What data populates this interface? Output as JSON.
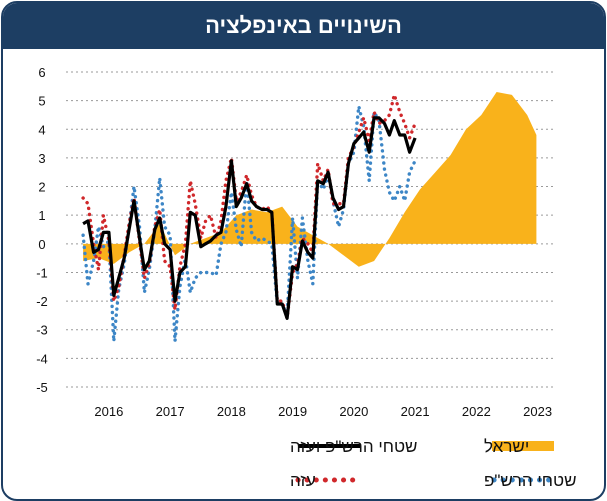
{
  "title": "השינויים באינפלציה",
  "colors": {
    "frame": "#1d3e63",
    "israel": "#f9b21b",
    "territories_gaza": "#000000",
    "gaza": "#d0282b",
    "territories": "#3d86c6"
  },
  "chart_data": {
    "type": "line",
    "title": "השינויים באינפלציה",
    "ylim": [
      -5,
      6
    ],
    "yticks": [
      "6",
      "5",
      "4",
      "3",
      "2",
      "1",
      "0",
      "-1",
      "-2",
      "-3",
      "-4",
      "-5"
    ],
    "xticks": [
      "2016",
      "2017",
      "2018",
      "2019",
      "2020",
      "2021",
      "2022",
      "2023"
    ],
    "grid": "horizontal-dotted",
    "legend_position": "bottom",
    "series": [
      {
        "name": "ישראל",
        "style": "area",
        "color": "#f9b21b",
        "points": [
          [
            2016.0,
            -0.6
          ],
          [
            2016.25,
            -0.5
          ],
          [
            2016.5,
            -0.7
          ],
          [
            2016.75,
            -0.3
          ],
          [
            2017.0,
            0.0
          ],
          [
            2017.25,
            0.7
          ],
          [
            2017.5,
            -0.4
          ],
          [
            2017.75,
            0.0
          ],
          [
            2018.0,
            0.2
          ],
          [
            2018.25,
            0.4
          ],
          [
            2018.5,
            1.0
          ],
          [
            2018.75,
            1.2
          ],
          [
            2019.0,
            1.1
          ],
          [
            2019.25,
            1.3
          ],
          [
            2019.5,
            0.6
          ],
          [
            2019.75,
            0.3
          ],
          [
            2020.0,
            0.0
          ],
          [
            2020.25,
            -0.4
          ],
          [
            2020.5,
            -0.8
          ],
          [
            2020.75,
            -0.6
          ],
          [
            2021.0,
            0.2
          ],
          [
            2021.25,
            1.1
          ],
          [
            2021.5,
            1.9
          ],
          [
            2021.75,
            2.5
          ],
          [
            2022.0,
            3.1
          ],
          [
            2022.25,
            4.0
          ],
          [
            2022.5,
            4.5
          ],
          [
            2022.75,
            5.3
          ],
          [
            2023.0,
            5.2
          ],
          [
            2023.25,
            4.5
          ],
          [
            2023.4,
            3.8
          ]
        ]
      },
      {
        "name": "שטחי הרש\"פ ועזה",
        "style": "solid",
        "color": "#000000",
        "points": [
          [
            2016.0,
            0.7
          ],
          [
            2016.08,
            0.8
          ],
          [
            2016.17,
            -0.3
          ],
          [
            2016.25,
            -0.2
          ],
          [
            2016.33,
            0.4
          ],
          [
            2016.42,
            0.4
          ],
          [
            2016.5,
            -1.8
          ],
          [
            2016.58,
            -1.2
          ],
          [
            2016.67,
            -0.5
          ],
          [
            2016.75,
            0.5
          ],
          [
            2016.83,
            1.5
          ],
          [
            2016.92,
            0.2
          ],
          [
            2017.0,
            -0.9
          ],
          [
            2017.08,
            -0.6
          ],
          [
            2017.17,
            0.5
          ],
          [
            2017.25,
            0.9
          ],
          [
            2017.33,
            0.0
          ],
          [
            2017.42,
            -0.2
          ],
          [
            2017.5,
            -2.0
          ],
          [
            2017.58,
            -1.0
          ],
          [
            2017.67,
            -0.8
          ],
          [
            2017.75,
            1.1
          ],
          [
            2017.83,
            1.0
          ],
          [
            2017.92,
            -0.1
          ],
          [
            2018.0,
            0.0
          ],
          [
            2018.08,
            0.1
          ],
          [
            2018.17,
            0.3
          ],
          [
            2018.25,
            0.4
          ],
          [
            2018.33,
            1.3
          ],
          [
            2018.42,
            2.9
          ],
          [
            2018.5,
            1.3
          ],
          [
            2018.58,
            1.6
          ],
          [
            2018.67,
            2.1
          ],
          [
            2018.75,
            1.5
          ],
          [
            2018.83,
            1.3
          ],
          [
            2018.92,
            1.2
          ],
          [
            2019.0,
            1.2
          ],
          [
            2019.08,
            1.1
          ],
          [
            2019.17,
            -2.1
          ],
          [
            2019.25,
            -2.1
          ],
          [
            2019.33,
            -2.6
          ],
          [
            2019.42,
            -0.8
          ],
          [
            2019.5,
            -0.9
          ],
          [
            2019.58,
            0.1
          ],
          [
            2019.67,
            -0.3
          ],
          [
            2019.75,
            -0.5
          ],
          [
            2019.83,
            2.2
          ],
          [
            2019.92,
            2.1
          ],
          [
            2020.0,
            2.5
          ],
          [
            2020.08,
            1.6
          ],
          [
            2020.17,
            1.2
          ],
          [
            2020.25,
            1.3
          ],
          [
            2020.33,
            2.8
          ],
          [
            2020.42,
            3.5
          ],
          [
            2020.5,
            3.7
          ],
          [
            2020.58,
            3.9
          ],
          [
            2020.67,
            3.2
          ],
          [
            2020.75,
            4.4
          ],
          [
            2020.83,
            4.4
          ],
          [
            2020.92,
            4.2
          ],
          [
            2021.0,
            3.8
          ],
          [
            2021.08,
            4.3
          ],
          [
            2021.17,
            3.8
          ],
          [
            2021.25,
            3.8
          ],
          [
            2021.33,
            3.2
          ],
          [
            2021.42,
            3.7
          ]
        ]
      },
      {
        "name": "עזה",
        "style": "dotted",
        "color": "#d0282b",
        "points": [
          [
            2016.0,
            1.6
          ],
          [
            2016.08,
            1.4
          ],
          [
            2016.17,
            0.0
          ],
          [
            2016.25,
            -0.9
          ],
          [
            2016.33,
            1.0
          ],
          [
            2016.42,
            0.1
          ],
          [
            2016.5,
            -2.0
          ],
          [
            2016.58,
            -1.5
          ],
          [
            2016.67,
            -0.4
          ],
          [
            2016.75,
            0.7
          ],
          [
            2016.83,
            1.6
          ],
          [
            2016.92,
            0.1
          ],
          [
            2017.0,
            -1.2
          ],
          [
            2017.08,
            -0.7
          ],
          [
            2017.17,
            0.6
          ],
          [
            2017.25,
            1.2
          ],
          [
            2017.33,
            -0.6
          ],
          [
            2017.42,
            -0.8
          ],
          [
            2017.5,
            -2.3
          ],
          [
            2017.58,
            -0.8
          ],
          [
            2017.67,
            0.0
          ],
          [
            2017.75,
            2.2
          ],
          [
            2017.83,
            1.4
          ],
          [
            2017.92,
            0.2
          ],
          [
            2018.0,
            0.8
          ],
          [
            2018.08,
            1.0
          ],
          [
            2018.17,
            0.2
          ],
          [
            2018.25,
            0.8
          ],
          [
            2018.33,
            2.2
          ],
          [
            2018.42,
            3.0
          ],
          [
            2018.5,
            1.5
          ],
          [
            2018.58,
            1.8
          ],
          [
            2018.67,
            2.4
          ],
          [
            2018.75,
            1.7
          ],
          [
            2018.83,
            1.3
          ],
          [
            2018.92,
            1.2
          ],
          [
            2019.0,
            1.3
          ],
          [
            2019.08,
            1.1
          ],
          [
            2019.17,
            -2.0
          ],
          [
            2019.25,
            -2.0
          ],
          [
            2019.33,
            -2.6
          ],
          [
            2019.42,
            -1.0
          ],
          [
            2019.5,
            -0.7
          ],
          [
            2019.58,
            0.2
          ],
          [
            2019.67,
            0.0
          ],
          [
            2019.75,
            -0.3
          ],
          [
            2019.83,
            2.8
          ],
          [
            2019.92,
            2.2
          ],
          [
            2020.0,
            2.6
          ],
          [
            2020.08,
            1.4
          ],
          [
            2020.17,
            1.4
          ],
          [
            2020.25,
            1.4
          ],
          [
            2020.33,
            3.0
          ],
          [
            2020.42,
            3.4
          ],
          [
            2020.5,
            3.9
          ],
          [
            2020.58,
            4.4
          ],
          [
            2020.67,
            3.6
          ],
          [
            2020.75,
            4.6
          ],
          [
            2020.83,
            4.2
          ],
          [
            2020.92,
            4.3
          ],
          [
            2021.0,
            4.5
          ],
          [
            2021.08,
            5.2
          ],
          [
            2021.17,
            4.6
          ],
          [
            2021.25,
            4.2
          ],
          [
            2021.33,
            3.7
          ],
          [
            2021.42,
            4.2
          ]
        ]
      },
      {
        "name": "שטחי הרש\"פ",
        "style": "dotted",
        "color": "#3d86c6",
        "points": [
          [
            2016.0,
            0.3
          ],
          [
            2016.08,
            -1.4
          ],
          [
            2016.17,
            -0.6
          ],
          [
            2016.25,
            0.6
          ],
          [
            2016.33,
            -0.1
          ],
          [
            2016.42,
            0.1
          ],
          [
            2016.5,
            -3.4
          ],
          [
            2016.58,
            -1.6
          ],
          [
            2016.67,
            -0.7
          ],
          [
            2016.75,
            0.6
          ],
          [
            2016.83,
            2.0
          ],
          [
            2016.92,
            0.6
          ],
          [
            2017.0,
            -1.7
          ],
          [
            2017.08,
            -0.9
          ],
          [
            2017.17,
            0.5
          ],
          [
            2017.25,
            2.3
          ],
          [
            2017.33,
            0.6
          ],
          [
            2017.42,
            0.3
          ],
          [
            2017.5,
            -3.4
          ],
          [
            2017.58,
            -1.5
          ],
          [
            2017.67,
            -0.5
          ],
          [
            2017.75,
            -1.7
          ],
          [
            2017.83,
            -1.2
          ],
          [
            2017.92,
            -1.0
          ],
          [
            2018.0,
            -1.0
          ],
          [
            2018.08,
            -1.0
          ],
          [
            2018.17,
            -1.1
          ],
          [
            2018.25,
            0.0
          ],
          [
            2018.33,
            0.4
          ],
          [
            2018.42,
            1.8
          ],
          [
            2018.5,
            0.5
          ],
          [
            2018.58,
            -0.1
          ],
          [
            2018.67,
            2.2
          ],
          [
            2018.75,
            0.4
          ],
          [
            2018.83,
            0.1
          ],
          [
            2018.92,
            0.2
          ],
          [
            2019.0,
            0.1
          ],
          [
            2019.08,
            0.0
          ],
          [
            2019.17,
            -2.1
          ],
          [
            2019.25,
            -2.1
          ],
          [
            2019.33,
            -2.5
          ],
          [
            2019.42,
            0.9
          ],
          [
            2019.5,
            -1.2
          ],
          [
            2019.58,
            0.9
          ],
          [
            2019.67,
            -0.6
          ],
          [
            2019.75,
            -1.4
          ],
          [
            2019.83,
            2.2
          ],
          [
            2019.92,
            1.9
          ],
          [
            2020.0,
            2.4
          ],
          [
            2020.08,
            1.5
          ],
          [
            2020.17,
            0.6
          ],
          [
            2020.25,
            1.2
          ],
          [
            2020.33,
            2.8
          ],
          [
            2020.42,
            3.2
          ],
          [
            2020.5,
            4.8
          ],
          [
            2020.58,
            4.1
          ],
          [
            2020.67,
            2.2
          ],
          [
            2020.75,
            4.6
          ],
          [
            2020.83,
            4.3
          ],
          [
            2020.92,
            2.6
          ],
          [
            2021.0,
            1.8
          ],
          [
            2021.08,
            1.5
          ],
          [
            2021.17,
            2.0
          ],
          [
            2021.25,
            1.5
          ],
          [
            2021.33,
            2.5
          ],
          [
            2021.42,
            2.9
          ]
        ]
      }
    ]
  },
  "legend": {
    "israel_label": "ישראל",
    "territories_gaza_label": "שטחי הרש\"פ ועזה",
    "gaza_label": "עזה",
    "territories_label": "שטחי הרש\"פ"
  }
}
